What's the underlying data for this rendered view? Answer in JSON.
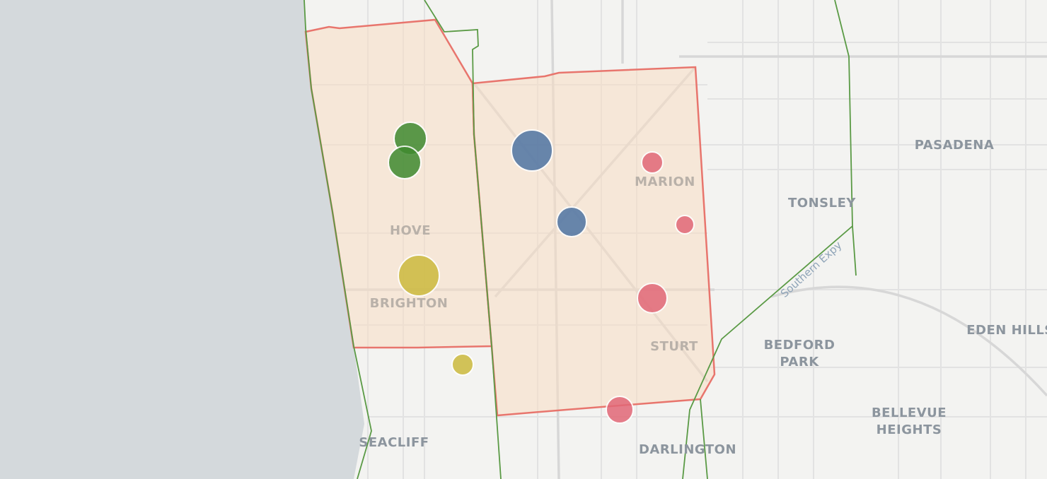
{
  "map": {
    "places": [
      {
        "name": "HOVE"
      },
      {
        "name": "BRIGHTON"
      },
      {
        "name": "SEACLIFF"
      },
      {
        "name": "MARION"
      },
      {
        "name": "STURT"
      },
      {
        "name": "DARLINGTON"
      },
      {
        "name": "TONSLEY"
      },
      {
        "name": "PASADENA"
      },
      {
        "name": "EDEN HILLS"
      },
      {
        "lines": [
          "BEDFORD",
          "PARK"
        ]
      },
      {
        "lines": [
          "BELLEVUE",
          "HEIGHTS"
        ]
      }
    ],
    "road_labels": [
      "Southern Expy"
    ]
  }
}
